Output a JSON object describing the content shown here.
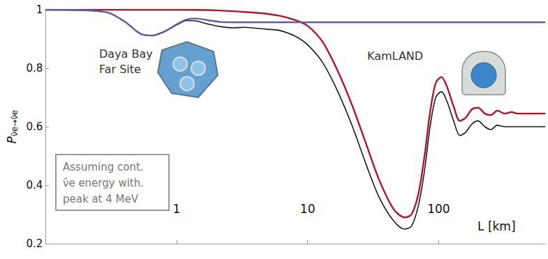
{
  "chart_data": {
    "type": "line",
    "x_label": "L [km]",
    "y_label": "Pν̄e→ν̄e",
    "log": "x",
    "grid": false,
    "xlim": [
      0.1,
      650
    ],
    "xticks": [
      1,
      10,
      100
    ],
    "ylim": [
      0.2,
      1
    ],
    "yticks": [
      0.2,
      0.4,
      0.6,
      0.8,
      1
    ],
    "annotations": [
      "Daya Bay\nFar Site",
      "KamLAND",
      "Assuming cont.\nν̄e energy with.\npeak at 4 MeV"
    ],
    "series": [
      {
        "color": "#1a1a1a",
        "x": [
          0.1,
          0.2,
          0.3,
          0.4,
          0.5,
          0.55,
          0.65,
          0.8,
          1.0,
          1.2,
          1.4,
          1.7,
          2.2,
          2.7,
          3.3,
          4,
          5,
          6,
          8,
          10,
          13,
          17,
          22,
          28,
          35,
          45,
          55,
          62,
          70,
          78,
          86,
          95,
          105,
          115,
          130,
          145,
          160,
          180,
          200,
          225,
          250,
          280,
          320,
          400,
          650
        ],
        "values": [
          1,
          0.998,
          0.99,
          0.96,
          0.925,
          0.915,
          0.912,
          0.924,
          0.948,
          0.963,
          0.962,
          0.952,
          0.942,
          0.938,
          0.94,
          0.937,
          0.933,
          0.93,
          0.91,
          0.88,
          0.82,
          0.72,
          0.6,
          0.47,
          0.36,
          0.28,
          0.25,
          0.26,
          0.33,
          0.45,
          0.6,
          0.7,
          0.72,
          0.69,
          0.62,
          0.57,
          0.58,
          0.61,
          0.62,
          0.6,
          0.59,
          0.605,
          0.6,
          0.6,
          0.6
        ]
      },
      {
        "color": "#b3122b",
        "x": [
          0.1,
          1,
          2,
          4,
          6,
          8,
          10,
          13,
          17,
          22,
          28,
          35,
          45,
          55,
          62,
          70,
          78,
          86,
          95,
          105,
          115,
          130,
          145,
          160,
          180,
          200,
          225,
          250,
          280,
          320,
          360,
          400,
          650
        ],
        "values": [
          1,
          1,
          0.998,
          0.99,
          0.98,
          0.965,
          0.945,
          0.89,
          0.79,
          0.67,
          0.54,
          0.42,
          0.32,
          0.29,
          0.3,
          0.37,
          0.5,
          0.65,
          0.75,
          0.77,
          0.74,
          0.67,
          0.62,
          0.63,
          0.66,
          0.665,
          0.645,
          0.64,
          0.655,
          0.645,
          0.65,
          0.645,
          0.645
        ]
      },
      {
        "color": "#5b5ba8",
        "x": [
          0.1,
          0.2,
          0.3,
          0.4,
          0.5,
          0.55,
          0.65,
          0.8,
          1.0,
          1.2,
          1.4,
          1.7,
          2.2,
          3,
          10,
          650
        ],
        "values": [
          1,
          0.998,
          0.99,
          0.96,
          0.925,
          0.915,
          0.912,
          0.925,
          0.95,
          0.967,
          0.97,
          0.965,
          0.958,
          0.957,
          0.957,
          0.957
        ]
      }
    ]
  }
}
